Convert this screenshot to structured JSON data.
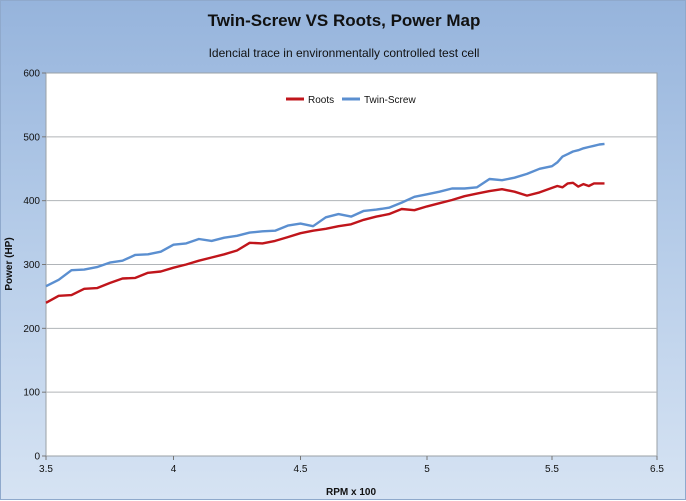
{
  "chart_data": {
    "type": "line",
    "title": "Twin-Screw VS Roots, Power Map",
    "subtitle": "Idencial trace in environmentally controlled test cell",
    "xlabel": "RPM x 100",
    "ylabel": "Power (HP)",
    "xlim": [
      3.5,
      6.5
    ],
    "ylim": [
      0,
      600
    ],
    "x_ticks": [
      "3.5",
      "4",
      "4.5",
      "5",
      "5.5",
      "6.5"
    ],
    "x_tick_values": [
      3.5,
      4.0,
      4.5,
      5.0,
      5.5,
      6.5
    ],
    "y_ticks": [
      "0",
      "100",
      "200",
      "300",
      "400",
      "500",
      "600"
    ],
    "y_tick_values": [
      0,
      100,
      200,
      300,
      400,
      500,
      600
    ],
    "grid": "horizontal",
    "legend": "top-center",
    "x": [
      3.5,
      3.55,
      3.6,
      3.65,
      3.7,
      3.75,
      3.8,
      3.85,
      3.9,
      3.95,
      4.0,
      4.05,
      4.1,
      4.15,
      4.2,
      4.25,
      4.3,
      4.35,
      4.4,
      4.45,
      4.5,
      4.55,
      4.6,
      4.65,
      4.7,
      4.75,
      4.8,
      4.85,
      4.9,
      4.95,
      5.0,
      5.05,
      5.1,
      5.15,
      5.2,
      5.25,
      5.3,
      5.35,
      5.4,
      5.45,
      5.5,
      5.55,
      5.6,
      5.65,
      5.7,
      5.75,
      5.8,
      5.85,
      5.9,
      5.95,
      6.0
    ],
    "series": [
      {
        "name": "Roots",
        "color": "#c0151b",
        "values": [
          240,
          251,
          252,
          262,
          263,
          271,
          278,
          279,
          287,
          289,
          295,
          300,
          306,
          311,
          316,
          322,
          334,
          333,
          337,
          343,
          349,
          353,
          356,
          360,
          363,
          370,
          375,
          379,
          387,
          385,
          391,
          396,
          401,
          407,
          411,
          415,
          418,
          414,
          408,
          413,
          420,
          423,
          421,
          427,
          428,
          422,
          426,
          423,
          427,
          427,
          427
        ]
      },
      {
        "name": "Twin-Screw",
        "color": "#5b8fd0",
        "values": [
          266,
          276,
          291,
          292,
          296,
          303,
          306,
          315,
          316,
          320,
          331,
          333,
          340,
          337,
          342,
          345,
          350,
          352,
          353,
          361,
          364,
          360,
          374,
          379,
          375,
          384,
          386,
          389,
          397,
          406,
          410,
          414,
          419,
          419,
          421,
          434,
          432,
          436,
          442,
          450,
          454,
          460,
          469,
          473,
          477,
          479,
          482,
          484,
          486,
          488,
          489
        ]
      }
    ]
  }
}
